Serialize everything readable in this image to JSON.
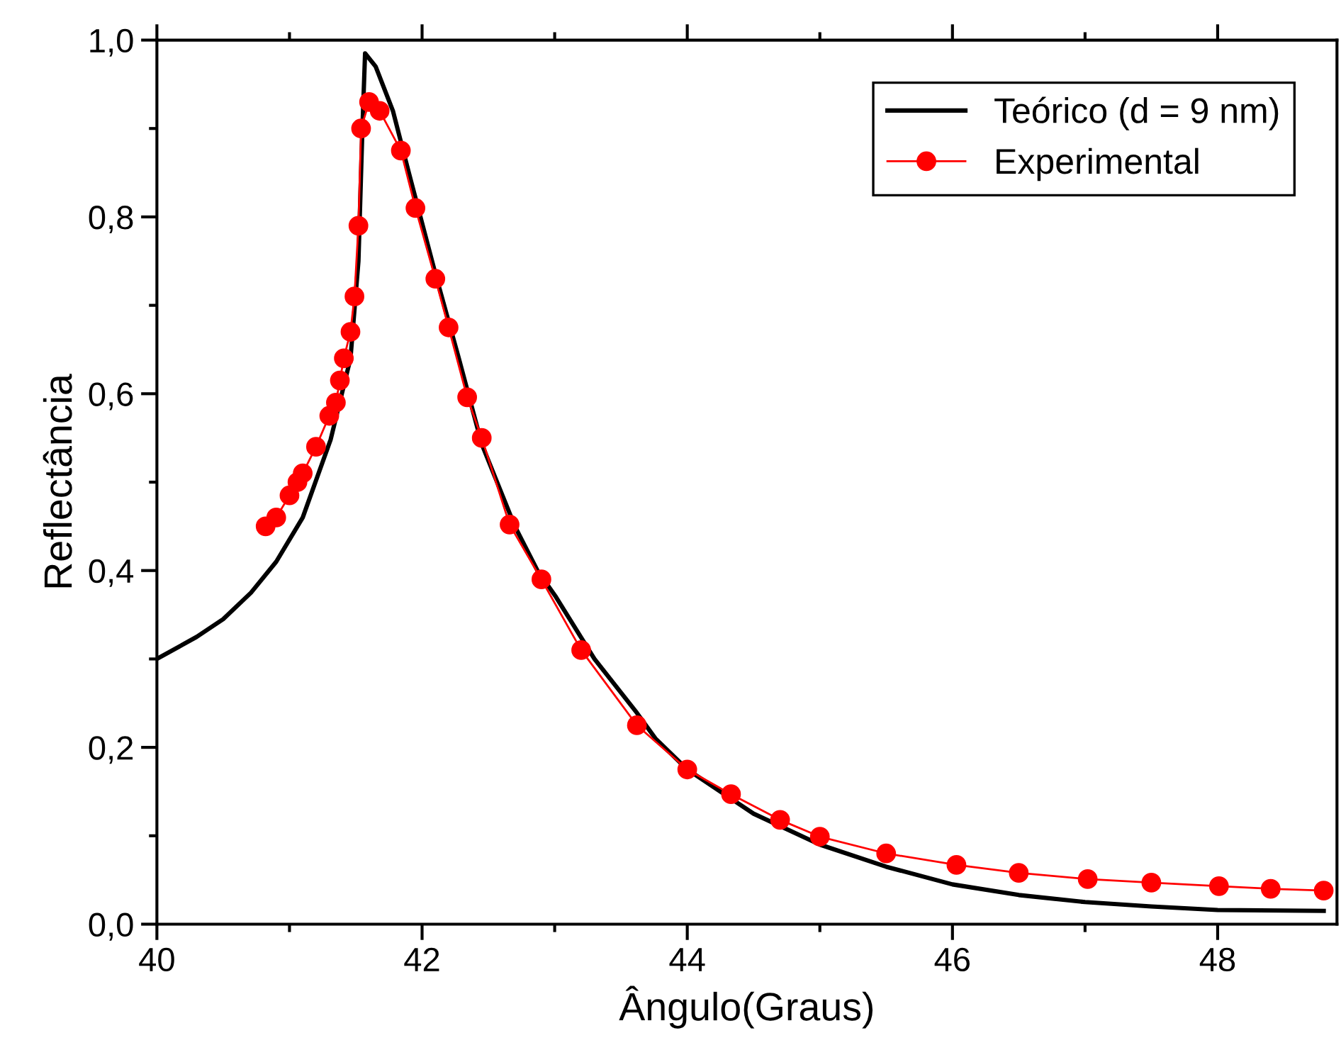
{
  "chart_data": {
    "type": "line",
    "xlabel": "Ângulo(Graus)",
    "ylabel": "Reflectância",
    "xlim": [
      40,
      48.9
    ],
    "xticks": [
      40,
      42,
      44,
      46,
      48
    ],
    "ylim": [
      0,
      1.0
    ],
    "yticks": [
      {
        "value": 0,
        "label": "0,0"
      },
      {
        "value": 0.2,
        "label": "0,2"
      },
      {
        "value": 0.4,
        "label": "0,4"
      },
      {
        "value": 0.6,
        "label": "0,6"
      },
      {
        "value": 0.8,
        "label": "0,8"
      },
      {
        "value": 1.0,
        "label": "1,0"
      }
    ],
    "grid": false,
    "legend": "top right",
    "series": [
      {
        "name": "Teórico (d = 9 nm)",
        "color": "#000000",
        "marker": "none",
        "line_style": "solid",
        "x": [
          40,
          40.3,
          40.5,
          40.71,
          40.9,
          41.1,
          41.31,
          41.46,
          41.52,
          41.55,
          41.57,
          41.65,
          41.78,
          41.9,
          42.1,
          42.27,
          42.45,
          42.7,
          42.87,
          43.01,
          43.3,
          43.62,
          43.76,
          44.0,
          44.5,
          45.0,
          45.5,
          46.0,
          46.5,
          47.0,
          47.5,
          48.0,
          48.8
        ],
        "values": [
          0.3,
          0.325,
          0.345,
          0.375,
          0.41,
          0.46,
          0.548,
          0.64,
          0.75,
          0.9,
          0.985,
          0.97,
          0.92,
          0.85,
          0.736,
          0.644,
          0.543,
          0.45,
          0.4,
          0.37,
          0.3,
          0.239,
          0.21,
          0.175,
          0.125,
          0.09,
          0.065,
          0.045,
          0.033,
          0.025,
          0.02,
          0.016,
          0.015
        ]
      },
      {
        "name": "Experimental",
        "color": "#ff0000",
        "marker": "circle",
        "line_style": "solid",
        "x": [
          40.82,
          40.9,
          41.0,
          41.06,
          41.1,
          41.2,
          41.3,
          41.35,
          41.38,
          41.41,
          41.46,
          41.49,
          41.52,
          41.54,
          41.6,
          41.68,
          41.84,
          41.95,
          42.1,
          42.2,
          42.34,
          42.45,
          42.66,
          42.9,
          43.2,
          43.62,
          44.0,
          44.33,
          44.7,
          45.0,
          45.5,
          46.03,
          46.5,
          47.02,
          47.5,
          48.01,
          48.4,
          48.8
        ],
        "values": [
          0.45,
          0.46,
          0.485,
          0.5,
          0.51,
          0.54,
          0.575,
          0.59,
          0.615,
          0.64,
          0.67,
          0.71,
          0.79,
          0.9,
          0.93,
          0.92,
          0.875,
          0.81,
          0.73,
          0.675,
          0.596,
          0.55,
          0.452,
          0.39,
          0.31,
          0.225,
          0.175,
          0.147,
          0.118,
          0.099,
          0.08,
          0.067,
          0.058,
          0.051,
          0.047,
          0.043,
          0.04,
          0.038
        ]
      }
    ]
  }
}
